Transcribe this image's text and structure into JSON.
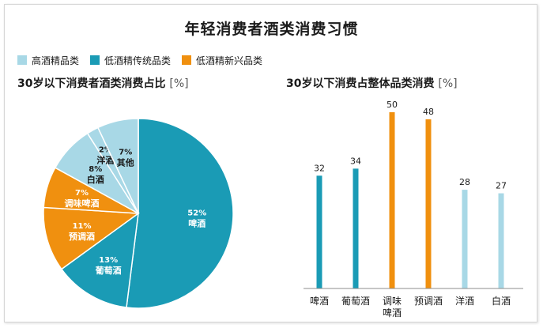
{
  "title": "年轻消费者酒类消费习惯",
  "legend": [
    {
      "label": "高酒精品类",
      "color": "#a8d8e6"
    },
    {
      "label": "低酒精传统品类",
      "color": "#1a9bb5"
    },
    {
      "label": "低酒精新兴品类",
      "color": "#f0900f"
    }
  ],
  "chart_data": [
    {
      "type": "pie",
      "title": "30岁以下消费者酒类消费占比",
      "unit": "[%]",
      "slices": [
        {
          "label": "啤酒",
          "value": 52,
          "display": "52%",
          "group": 1
        },
        {
          "label": "葡萄酒",
          "value": 13,
          "display": "13%",
          "group": 1
        },
        {
          "label": "预调酒",
          "value": 11,
          "display": "11%",
          "group": 2
        },
        {
          "label": "调味啤酒",
          "value": 7,
          "display": "7%",
          "group": 2
        },
        {
          "label": "白酒",
          "value": 8,
          "display": "8%",
          "group": 0
        },
        {
          "label": "洋酒",
          "value": 2,
          "display": "2%",
          "group": 0
        },
        {
          "label": "其他",
          "value": 7,
          "display": "7%",
          "group": 0
        }
      ]
    },
    {
      "type": "bar",
      "title": "30岁以下消费占整体品类消费",
      "unit": "[%]",
      "categories": [
        "啤酒",
        "葡萄酒",
        "调味啤酒",
        "预调酒",
        "洋酒",
        "白酒"
      ],
      "values": [
        32,
        34,
        50,
        48,
        28,
        27
      ],
      "groups": [
        1,
        1,
        2,
        2,
        0,
        0
      ],
      "ylim": [
        0,
        50
      ]
    }
  ]
}
